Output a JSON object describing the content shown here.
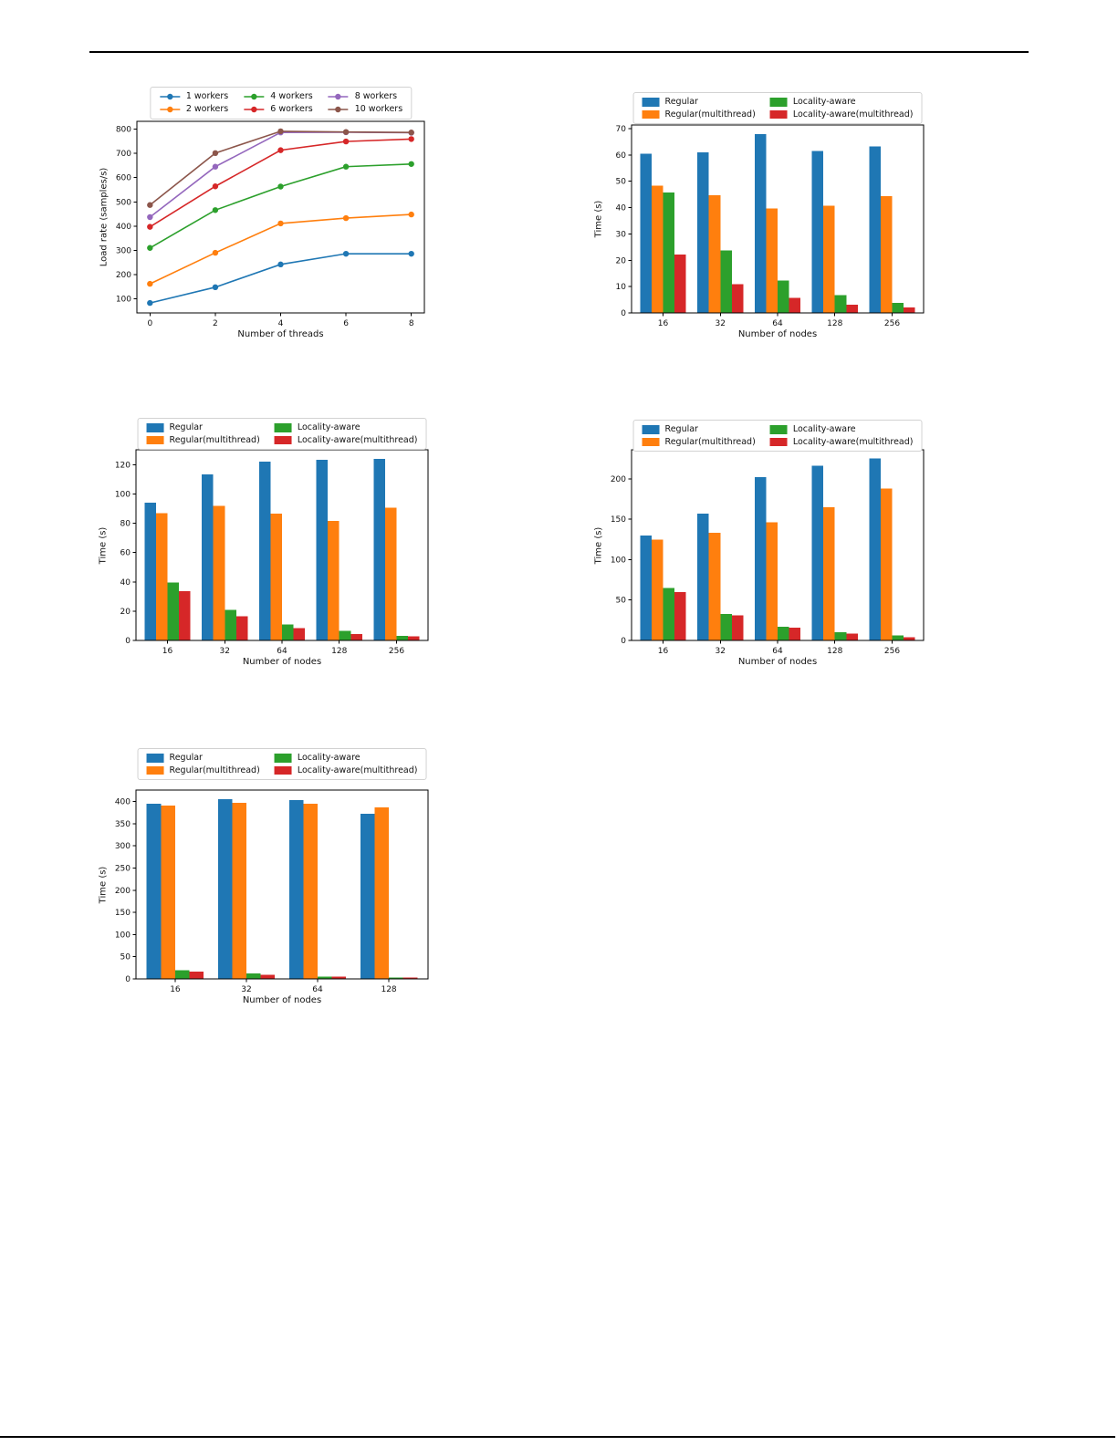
{
  "page": {
    "background": "#ffffff",
    "rule_color": "#000000"
  },
  "colors": {
    "blue": "#1f77b4",
    "orange": "#ff7f0e",
    "green": "#2ca02c",
    "red": "#d62728",
    "purple": "#9467bd",
    "brown": "#8c564b"
  },
  "chart_data": [
    {
      "id": "load-rate-vs-threads",
      "type": "line",
      "title": "",
      "xlabel": "Number of threads",
      "ylabel": "Load rate (samples/s)",
      "x": [
        0,
        2,
        4,
        6,
        8
      ],
      "xticks": [
        0,
        2,
        4,
        6,
        8
      ],
      "yticks": [
        100,
        200,
        300,
        400,
        500,
        600,
        700,
        800
      ],
      "xlim": [
        -0.4,
        8.4
      ],
      "ylim": [
        42,
        832
      ],
      "grid": false,
      "legend": {
        "ncol": 3,
        "position": "top"
      },
      "series": [
        {
          "name": "1 workers",
          "color": "#1f77b4",
          "values": [
            83,
            148,
            242,
            286,
            286
          ]
        },
        {
          "name": "2 workers",
          "color": "#ff7f0e",
          "values": [
            162,
            290,
            411,
            433,
            448
          ]
        },
        {
          "name": "4 workers",
          "color": "#2ca02c",
          "values": [
            310,
            466,
            563,
            645,
            656
          ]
        },
        {
          "name": "6 workers",
          "color": "#d62728",
          "values": [
            397,
            564,
            713,
            749,
            759
          ]
        },
        {
          "name": "8 workers",
          "color": "#9467bd",
          "values": [
            437,
            645,
            786,
            787,
            785
          ]
        },
        {
          "name": "10 workers",
          "color": "#8c564b",
          "values": [
            487,
            701,
            791,
            788,
            786
          ]
        }
      ]
    },
    {
      "id": "time-vs-nodes-a",
      "type": "bar",
      "title": "",
      "xlabel": "Number of nodes",
      "ylabel": "Time (s)",
      "categories": [
        "16",
        "32",
        "64",
        "128",
        "256"
      ],
      "yticks": [
        0,
        10,
        20,
        30,
        40,
        50,
        60,
        70
      ],
      "ylim": [
        0,
        71.4
      ],
      "grid": false,
      "legend": {
        "ncol": 2,
        "position": "top"
      },
      "series": [
        {
          "name": "Regular",
          "color": "#1f77b4",
          "values": [
            60.4,
            61.0,
            68.0,
            61.5,
            63.2
          ]
        },
        {
          "name": "Regular(multithread)",
          "color": "#ff7f0e",
          "values": [
            48.4,
            44.7,
            39.6,
            40.7,
            44.4
          ]
        },
        {
          "name": "Locality-aware",
          "color": "#2ca02c",
          "values": [
            45.8,
            23.8,
            12.3,
            6.8,
            3.8
          ]
        },
        {
          "name": "Locality-aware(multithread)",
          "color": "#d62728",
          "values": [
            22.1,
            10.9,
            5.8,
            3.1,
            2.1
          ]
        }
      ]
    },
    {
      "id": "time-vs-nodes-b",
      "type": "bar",
      "title": "",
      "xlabel": "Number of nodes",
      "ylabel": "Time (s)",
      "categories": [
        "16",
        "32",
        "64",
        "128",
        "256"
      ],
      "yticks": [
        0,
        20,
        40,
        60,
        80,
        100,
        120
      ],
      "ylim": [
        0,
        130.2
      ],
      "grid": false,
      "legend": {
        "ncol": 2,
        "position": "top"
      },
      "series": [
        {
          "name": "Regular",
          "color": "#1f77b4",
          "values": [
            94,
            113.5,
            122,
            123.5,
            124
          ]
        },
        {
          "name": "Regular(multithread)",
          "color": "#ff7f0e",
          "values": [
            87,
            92,
            86.5,
            81.5,
            90.5
          ]
        },
        {
          "name": "Locality-aware",
          "color": "#2ca02c",
          "values": [
            39.5,
            21,
            11,
            6.5,
            3.2
          ]
        },
        {
          "name": "Locality-aware(multithread)",
          "color": "#d62728",
          "values": [
            33.5,
            16.5,
            8.5,
            4.5,
            2.8
          ]
        }
      ]
    },
    {
      "id": "time-vs-nodes-c",
      "type": "bar",
      "title": "",
      "xlabel": "Number of nodes",
      "ylabel": "Time (s)",
      "categories": [
        "16",
        "32",
        "64",
        "128",
        "256"
      ],
      "yticks": [
        0,
        50,
        100,
        150,
        200
      ],
      "ylim": [
        0,
        236
      ],
      "grid": false,
      "legend": {
        "ncol": 2,
        "position": "top"
      },
      "series": [
        {
          "name": "Regular",
          "color": "#1f77b4",
          "values": [
            130,
            157,
            202,
            216,
            225
          ]
        },
        {
          "name": "Regular(multithread)",
          "color": "#ff7f0e",
          "values": [
            125,
            133,
            146,
            165,
            188
          ]
        },
        {
          "name": "Locality-aware",
          "color": "#2ca02c",
          "values": [
            65,
            33,
            17,
            10,
            6
          ]
        },
        {
          "name": "Locality-aware(multithread)",
          "color": "#d62728",
          "values": [
            60,
            31,
            16,
            8.5,
            4
          ]
        }
      ]
    },
    {
      "id": "time-vs-nodes-d",
      "type": "bar",
      "title": "",
      "xlabel": "Number of nodes",
      "ylabel": "Time (s)",
      "categories": [
        "16",
        "32",
        "64",
        "128"
      ],
      "yticks": [
        0,
        50,
        100,
        150,
        200,
        250,
        300,
        350,
        400
      ],
      "ylim": [
        0,
        426
      ],
      "grid": false,
      "legend": {
        "ncol": 2,
        "position": "top"
      },
      "series": [
        {
          "name": "Regular",
          "color": "#1f77b4",
          "values": [
            395,
            405,
            403,
            372
          ]
        },
        {
          "name": "Regular(multithread)",
          "color": "#ff7f0e",
          "values": [
            391,
            397,
            395,
            387
          ]
        },
        {
          "name": "Locality-aware",
          "color": "#2ca02c",
          "values": [
            20,
            12,
            5,
            3
          ]
        },
        {
          "name": "Locality-aware(multithread)",
          "color": "#d62728",
          "values": [
            16,
            9,
            5,
            3
          ]
        }
      ]
    }
  ]
}
